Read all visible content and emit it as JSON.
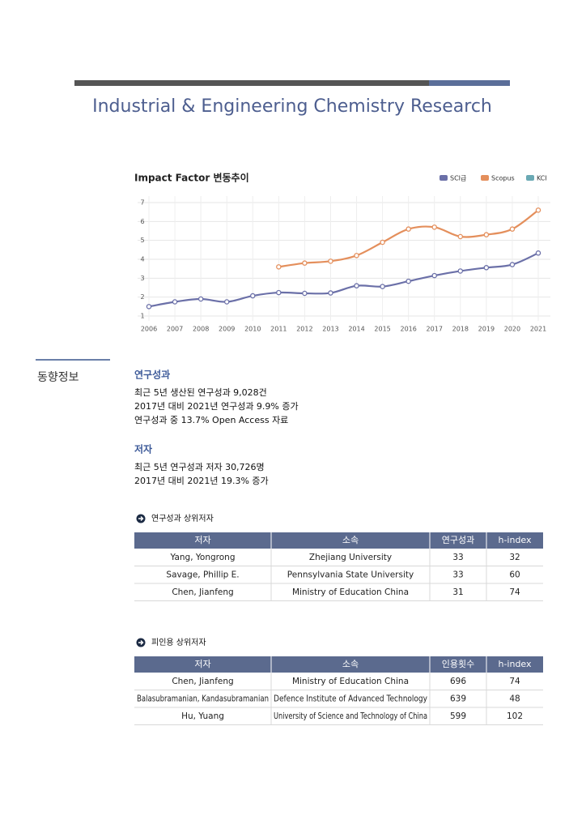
{
  "header": {
    "title": "Industrial & Engineering Chemistry Research"
  },
  "chart_data": {
    "type": "line",
    "title": "Impact Factor 변동추이",
    "x": [
      2006,
      2007,
      2008,
      2009,
      2010,
      2011,
      2012,
      2013,
      2014,
      2015,
      2016,
      2017,
      2018,
      2019,
      2020,
      2021
    ],
    "series": [
      {
        "name": "SCI급",
        "color": "#6b70a8",
        "values": [
          1.5,
          1.75,
          1.9,
          1.75,
          2.07,
          2.24,
          2.2,
          2.22,
          2.6,
          2.56,
          2.84,
          3.14,
          3.38,
          3.56,
          3.72,
          4.33
        ]
      },
      {
        "name": "Scopus",
        "color": "#e48f5c",
        "values": [
          null,
          null,
          null,
          null,
          null,
          3.6,
          3.8,
          3.9,
          4.2,
          4.9,
          5.6,
          5.7,
          5.2,
          5.3,
          5.6,
          6.6
        ]
      },
      {
        "name": "KCI",
        "color": "#6aa9b4",
        "values": [
          null,
          null,
          null,
          null,
          null,
          null,
          null,
          null,
          null,
          null,
          null,
          null,
          null,
          null,
          null,
          null
        ]
      }
    ],
    "ylim": [
      1,
      7
    ],
    "yticks": [
      1,
      2,
      3,
      4,
      5,
      6,
      7
    ],
    "grid": true,
    "legend": "top-right"
  },
  "side_label": "동향정보",
  "sections": [
    {
      "heading": "연구성과",
      "lines": [
        "최근 5년 생산된 연구성과 9,028건",
        "2017년 대비 2021년 연구성과 9.9% 증가",
        "연구성과 중 13.7% Open Access 자료"
      ]
    },
    {
      "heading": "저자",
      "lines": [
        "최근 5년 연구성과 저자 30,726명",
        "2017년 대비 2021년 19.3% 증가"
      ]
    }
  ],
  "tables": [
    {
      "heading": "연구성과 상위저자",
      "columns": [
        "저자",
        "소속",
        "연구성과",
        "h-index"
      ],
      "rows": [
        [
          "Yang, Yongrong",
          "Zhejiang University",
          33,
          32
        ],
        [
          "Savage, Phillip E.",
          "Pennsylvania State University",
          33,
          60
        ],
        [
          "Chen, Jianfeng",
          "Ministry of Education China",
          31,
          74
        ]
      ]
    },
    {
      "heading": "피인용 상위저자",
      "columns": [
        "저자",
        "소속",
        "인용횟수",
        "h-index"
      ],
      "rows": [
        [
          "Chen, Jianfeng",
          "Ministry of Education China",
          696,
          74
        ],
        [
          "Balasubramanian, Kandasubramanian",
          "Defence Institute of Advanced Technology",
          639,
          48
        ],
        [
          "Hu, Yuang",
          "University of Science and Technology of China",
          599,
          102
        ]
      ]
    }
  ]
}
